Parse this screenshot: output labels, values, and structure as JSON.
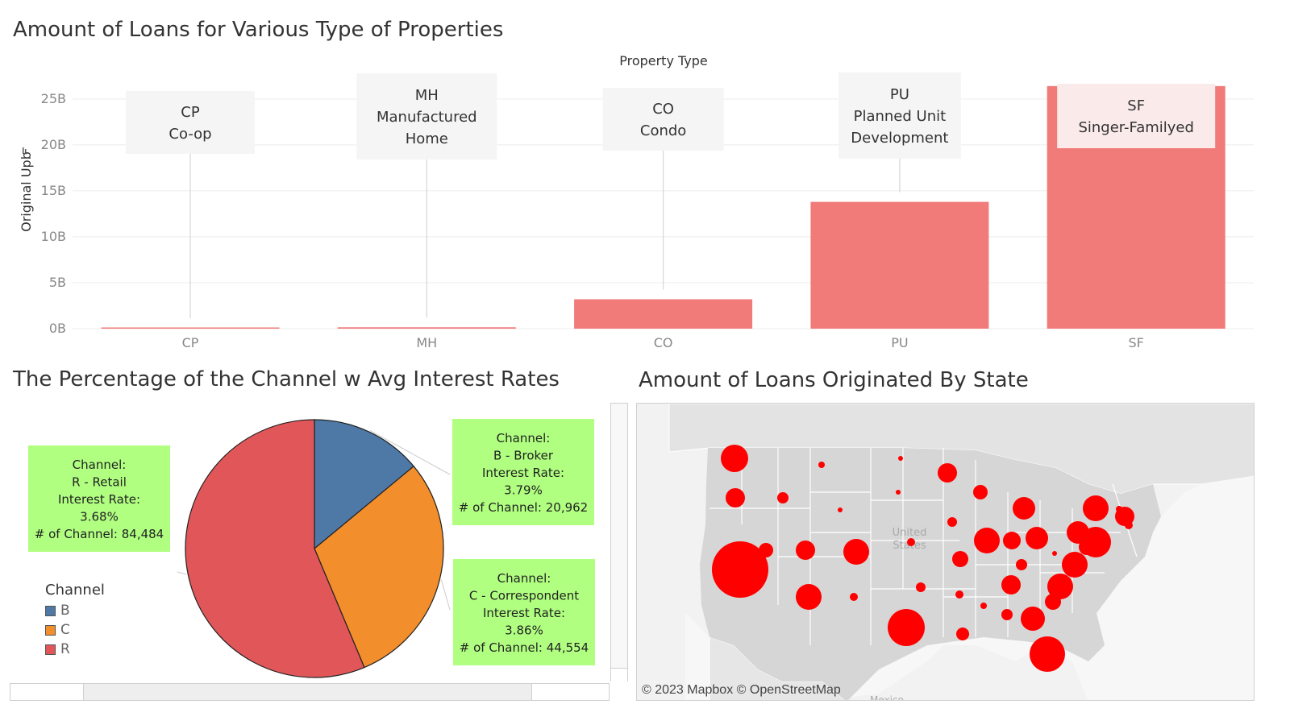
{
  "bar_section": {
    "title": "Amount of Loans for Various Type of Properties",
    "header": "Property Type",
    "ylabel": "Original Upb",
    "annotations": [
      {
        "code": "CP",
        "name": "Co-op"
      },
      {
        "code": "MH",
        "name": "Manufactured Home"
      },
      {
        "code": "CO",
        "name": "Condo"
      },
      {
        "code": "PU",
        "name": "Planned Unit Development"
      },
      {
        "code": "SF",
        "name": "Singer-Familyed"
      }
    ]
  },
  "pie_section": {
    "title": "The Percentage of the Channel w Avg Interest Rates",
    "callouts": {
      "R": [
        "Channel:",
        "R - Retail",
        "Interest Rate:",
        "3.68%",
        "# of Channel: 84,484"
      ],
      "B": [
        "Channel:",
        "B - Broker",
        "Interest Rate:",
        "3.79%",
        "# of Channel: 20,962"
      ],
      "C": [
        "Channel:",
        "C - Correspondent",
        "Interest Rate:",
        "3.86%",
        "# of Channel: 44,554"
      ]
    },
    "legend": {
      "title": "Channel",
      "items": [
        {
          "label": "B",
          "color": "#4e79a7"
        },
        {
          "label": "C",
          "color": "#f28e2b"
        },
        {
          "label": "R",
          "color": "#e15759"
        }
      ]
    }
  },
  "map_section": {
    "title": "Amount of Loans Originated By State",
    "country_label": "United States",
    "neighbor_label": "Mexico",
    "attribution": "© 2023 Mapbox © OpenStreetMap",
    "bubble_color": "#ff0000"
  },
  "chart_data": [
    {
      "type": "bar",
      "title": "Amount of Loans for Various Type of Properties",
      "header": "Property Type",
      "categories": [
        "CP",
        "MH",
        "CO",
        "PU",
        "SF"
      ],
      "values": [
        0.1,
        0.15,
        3.2,
        13.8,
        26.4
      ],
      "value_unit": "B",
      "ylabel": "Original Upb",
      "yticks": [
        "0B",
        "5B",
        "10B",
        "15B",
        "20B",
        "25B"
      ],
      "ylim": [
        0,
        27
      ],
      "color": "#f07b79",
      "grid": true
    },
    {
      "type": "pie",
      "title": "The Percentage of the Channel w Avg Interest Rates",
      "slices": [
        {
          "label": "B",
          "count": 20962,
          "interest_rate": 3.79,
          "color": "#4e79a7"
        },
        {
          "label": "C",
          "count": 44554,
          "interest_rate": 3.86,
          "color": "#f28e2b"
        },
        {
          "label": "R",
          "count": 84484,
          "interest_rate": 3.68,
          "color": "#e15759"
        }
      ],
      "legend": "bottom-left"
    }
  ]
}
